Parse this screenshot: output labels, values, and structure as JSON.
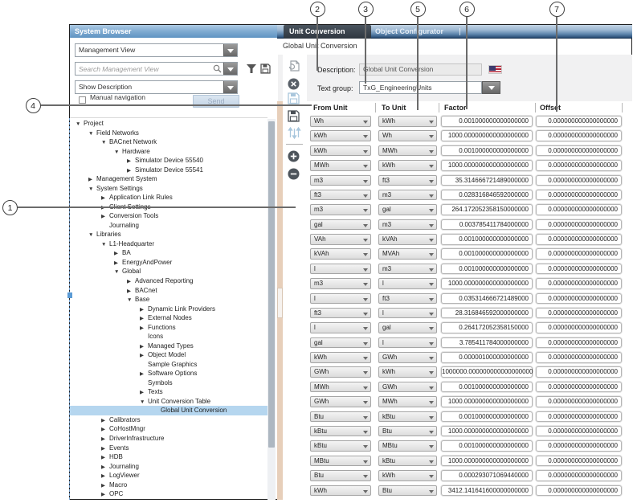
{
  "callouts": {
    "items": [
      "1",
      "2",
      "3",
      "4",
      "5",
      "6",
      "7"
    ]
  },
  "left_panel": {
    "title": "System Browser",
    "view_selector": "Management View",
    "search_placeholder": "Search Management View",
    "description_selector": "Show Description",
    "manual_navigation_label": "Manual navigation",
    "send_button": "Send",
    "tree": [
      {
        "label": "Project",
        "level": 0,
        "arrow": "expanded"
      },
      {
        "label": "Field Networks",
        "level": 1,
        "arrow": "expanded"
      },
      {
        "label": "BACnet Network",
        "level": 2,
        "arrow": "expanded"
      },
      {
        "label": "Hardware",
        "level": 3,
        "arrow": "expanded"
      },
      {
        "label": "Simulator Device 55540",
        "level": 4,
        "arrow": "collapsed"
      },
      {
        "label": "Simulator Device 55541",
        "level": 4,
        "arrow": "collapsed"
      },
      {
        "label": "Management System",
        "level": 1,
        "arrow": "collapsed"
      },
      {
        "label": "System Settings",
        "level": 1,
        "arrow": "expanded"
      },
      {
        "label": "Application Link Rules",
        "level": 2,
        "arrow": "collapsed"
      },
      {
        "label": "Client Settings",
        "level": 2,
        "arrow": "collapsed"
      },
      {
        "label": "Conversion Tools",
        "level": 2,
        "arrow": "collapsed"
      },
      {
        "label": "Journaling",
        "level": 2,
        "arrow": "none"
      },
      {
        "label": "Libraries",
        "level": 1,
        "arrow": "expanded"
      },
      {
        "label": "L1-Headquarter",
        "level": 2,
        "arrow": "expanded"
      },
      {
        "label": "BA",
        "level": 3,
        "arrow": "collapsed"
      },
      {
        "label": "EnergyAndPower",
        "level": 3,
        "arrow": "collapsed"
      },
      {
        "label": "Global",
        "level": 3,
        "arrow": "expanded"
      },
      {
        "label": "Advanced Reporting",
        "level": 4,
        "arrow": "collapsed"
      },
      {
        "label": "BACnet",
        "level": 4,
        "arrow": "collapsed"
      },
      {
        "label": "Base",
        "level": 4,
        "arrow": "expanded"
      },
      {
        "label": "Dynamic Link Providers",
        "level": 5,
        "arrow": "collapsed"
      },
      {
        "label": "External Nodes",
        "level": 5,
        "arrow": "collapsed"
      },
      {
        "label": "Functions",
        "level": 5,
        "arrow": "collapsed"
      },
      {
        "label": "Icons",
        "level": 5,
        "arrow": "none"
      },
      {
        "label": "Managed Types",
        "level": 5,
        "arrow": "collapsed"
      },
      {
        "label": "Object Model",
        "level": 5,
        "arrow": "collapsed"
      },
      {
        "label": "Sample Graphics",
        "level": 5,
        "arrow": "none"
      },
      {
        "label": "Software Options",
        "level": 5,
        "arrow": "collapsed"
      },
      {
        "label": "Symbols",
        "level": 5,
        "arrow": "none"
      },
      {
        "label": "Texts",
        "level": 5,
        "arrow": "collapsed"
      },
      {
        "label": "Unit Conversion Table",
        "level": 5,
        "arrow": "expanded"
      },
      {
        "label": "Global Unit Conversion",
        "level": 6,
        "arrow": "none",
        "selected": true
      },
      {
        "label": "Calibrators",
        "level": 2,
        "arrow": "collapsed"
      },
      {
        "label": "CoHostMngr",
        "level": 2,
        "arrow": "collapsed"
      },
      {
        "label": "DriverInfrastructure",
        "level": 2,
        "arrow": "collapsed"
      },
      {
        "label": "Events",
        "level": 2,
        "arrow": "collapsed"
      },
      {
        "label": "HDB",
        "level": 2,
        "arrow": "collapsed"
      },
      {
        "label": "Journaling",
        "level": 2,
        "arrow": "collapsed"
      },
      {
        "label": "LogViewer",
        "level": 2,
        "arrow": "collapsed"
      },
      {
        "label": "Macro",
        "level": 2,
        "arrow": "collapsed"
      },
      {
        "label": "OPC",
        "level": 2,
        "arrow": "collapsed"
      }
    ]
  },
  "right_panel": {
    "tabs": [
      {
        "label": "Unit Conversion",
        "active": true
      },
      {
        "label": "Object Configurator",
        "active": false
      }
    ],
    "breadcrumb": "Global Unit Conversion",
    "description_label": "Description:",
    "description_value": "Global Unit Conversion",
    "text_group_label": "Text group:",
    "text_group_value": "TxG_EngineeringUnits",
    "table": {
      "headers": [
        "From Unit",
        "To Unit",
        "Factor",
        "Offset"
      ],
      "rows": [
        {
          "from": "Wh",
          "to": "kWh",
          "factor": "0.001000000000000000",
          "offset": "0.000000000000000000"
        },
        {
          "from": "kWh",
          "to": "Wh",
          "factor": "1000.000000000000000000",
          "offset": "0.000000000000000000"
        },
        {
          "from": "kWh",
          "to": "MWh",
          "factor": "0.001000000000000000",
          "offset": "0.000000000000000000"
        },
        {
          "from": "MWh",
          "to": "kWh",
          "factor": "1000.000000000000000000",
          "offset": "0.000000000000000000"
        },
        {
          "from": "m3",
          "to": "ft3",
          "factor": "35.314666721489000000",
          "offset": "0.000000000000000000"
        },
        {
          "from": "ft3",
          "to": "m3",
          "factor": "0.028316846592000000",
          "offset": "0.000000000000000000"
        },
        {
          "from": "m3",
          "to": "gal",
          "factor": "264.172052358150000000",
          "offset": "0.000000000000000000"
        },
        {
          "from": "gal",
          "to": "m3",
          "factor": "0.003785411784000000",
          "offset": "0.000000000000000000"
        },
        {
          "from": "VAh",
          "to": "kVAh",
          "factor": "0.001000000000000000",
          "offset": "0.000000000000000000"
        },
        {
          "from": "kVAh",
          "to": "MVAh",
          "factor": "0.001000000000000000",
          "offset": "0.000000000000000000"
        },
        {
          "from": "l",
          "to": "m3",
          "factor": "0.001000000000000000",
          "offset": "0.000000000000000000"
        },
        {
          "from": "m3",
          "to": "l",
          "factor": "1000.000000000000000000",
          "offset": "0.000000000000000000"
        },
        {
          "from": "l",
          "to": "ft3",
          "factor": "0.035314666721489000",
          "offset": "0.000000000000000000"
        },
        {
          "from": "ft3",
          "to": "l",
          "factor": "28.316846592000000000",
          "offset": "0.000000000000000000"
        },
        {
          "from": "l",
          "to": "gal",
          "factor": "0.264172052358150000",
          "offset": "0.000000000000000000"
        },
        {
          "from": "gal",
          "to": "l",
          "factor": "3.785411784000000000",
          "offset": "0.000000000000000000"
        },
        {
          "from": "kWh",
          "to": "GWh",
          "factor": "0.000001000000000000",
          "offset": "0.000000000000000000"
        },
        {
          "from": "GWh",
          "to": "kWh",
          "factor": "1000000.000000000000000000",
          "offset": "0.000000000000000000"
        },
        {
          "from": "MWh",
          "to": "GWh",
          "factor": "0.001000000000000000",
          "offset": "0.000000000000000000"
        },
        {
          "from": "GWh",
          "to": "MWh",
          "factor": "1000.000000000000000000",
          "offset": "0.000000000000000000"
        },
        {
          "from": "Btu",
          "to": "kBtu",
          "factor": "0.001000000000000000",
          "offset": "0.000000000000000000"
        },
        {
          "from": "kBtu",
          "to": "Btu",
          "factor": "1000.000000000000000000",
          "offset": "0.000000000000000000"
        },
        {
          "from": "kBtu",
          "to": "MBtu",
          "factor": "0.001000000000000000",
          "offset": "0.000000000000000000"
        },
        {
          "from": "MBtu",
          "to": "kBtu",
          "factor": "1000.000000000000000000",
          "offset": "0.000000000000000000"
        },
        {
          "from": "Btu",
          "to": "kWh",
          "factor": "0.000293071069440000",
          "offset": "0.000000000000000000"
        },
        {
          "from": "kWh",
          "to": "Btu",
          "factor": "3412.141641600000000000",
          "offset": "0.000000000000000000"
        }
      ]
    },
    "colors": {
      "tab_active_bg": "#3a434d",
      "tabbar_bottom": "#274b72",
      "tree_selection": "#b5d6ef",
      "right_scrollbar_track": "#e7cfba"
    }
  }
}
